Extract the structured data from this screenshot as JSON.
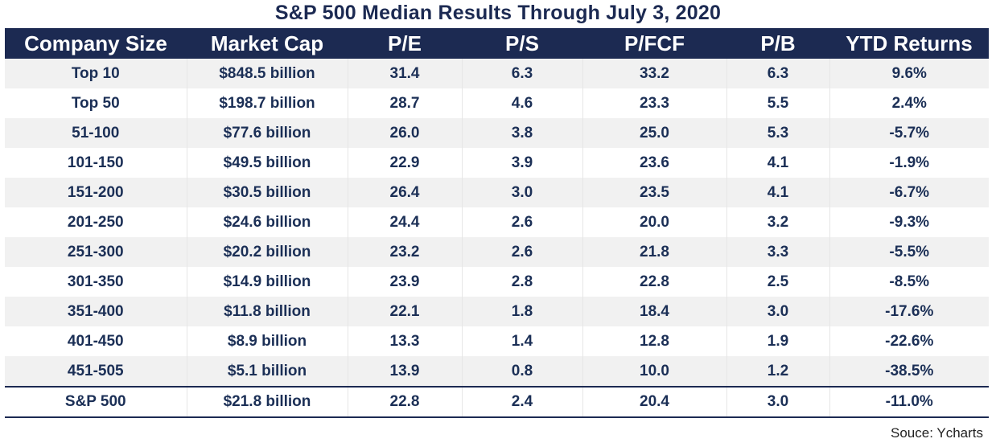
{
  "title": "S&P 500 Median Results Through July 3, 2020",
  "source": "Souce: Ycharts",
  "chart_data": {
    "type": "table",
    "title": "S&P 500 Median Results Through July 3, 2020",
    "columns": [
      "Company Size",
      "Market Cap",
      "P/E",
      "P/S",
      "P/FCF",
      "P/B",
      "YTD Returns"
    ],
    "rows": [
      [
        "Top 10",
        "$848.5 billion",
        "31.4",
        "6.3",
        "33.2",
        "6.3",
        "9.6%"
      ],
      [
        "Top 50",
        "$198.7 billion",
        "28.7",
        "4.6",
        "23.3",
        "5.5",
        "2.4%"
      ],
      [
        "51-100",
        "$77.6 billion",
        "26.0",
        "3.8",
        "25.0",
        "5.3",
        "-5.7%"
      ],
      [
        "101-150",
        "$49.5 billion",
        "22.9",
        "3.9",
        "23.6",
        "4.1",
        "-1.9%"
      ],
      [
        "151-200",
        "$30.5 billion",
        "26.4",
        "3.0",
        "23.5",
        "4.1",
        "-6.7%"
      ],
      [
        "201-250",
        "$24.6 billion",
        "24.4",
        "2.6",
        "20.0",
        "3.2",
        "-9.3%"
      ],
      [
        "251-300",
        "$20.2 billion",
        "23.2",
        "2.6",
        "21.8",
        "3.3",
        "-5.5%"
      ],
      [
        "301-350",
        "$14.9 billion",
        "23.9",
        "2.8",
        "22.8",
        "2.5",
        "-8.5%"
      ],
      [
        "351-400",
        "$11.8 billion",
        "22.1",
        "1.8",
        "18.4",
        "3.0",
        "-17.6%"
      ],
      [
        "401-450",
        "$8.9 billion",
        "13.3",
        "1.4",
        "12.8",
        "1.9",
        "-22.6%"
      ],
      [
        "451-505",
        "$5.1 billion",
        "13.9",
        "0.8",
        "10.0",
        "1.2",
        "-38.5%"
      ]
    ],
    "total_row": [
      "S&P 500",
      "$21.8 billion",
      "22.8",
      "2.4",
      "20.4",
      "3.0",
      "-11.0%"
    ]
  },
  "colors": {
    "header_bg": "#1c2a52",
    "header_text": "#ffffff",
    "body_text": "#1b2f56",
    "stripe": "#f1f1f1"
  }
}
